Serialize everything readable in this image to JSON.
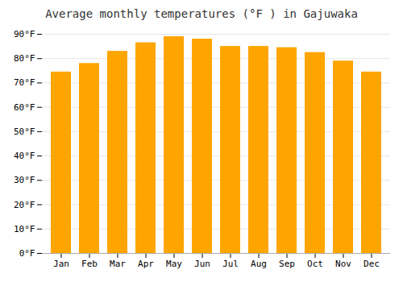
{
  "chart_data": {
    "type": "bar",
    "title": "Average monthly temperatures (°F ) in Gajuwaka",
    "categories": [
      "Jan",
      "Feb",
      "Mar",
      "Apr",
      "May",
      "Jun",
      "Jul",
      "Aug",
      "Sep",
      "Oct",
      "Nov",
      "Dec"
    ],
    "values": [
      74.5,
      78,
      83,
      86.5,
      89,
      88,
      85,
      85,
      84.5,
      82.5,
      79,
      74.5
    ],
    "color": "#FFA500",
    "ylim": [
      0,
      90
    ],
    "yticks": [
      {
        "value": 0,
        "label": "0°F"
      },
      {
        "value": 10,
        "label": "10°F"
      },
      {
        "value": 20,
        "label": "20°F"
      },
      {
        "value": 30,
        "label": "30°F"
      },
      {
        "value": 40,
        "label": "40°F"
      },
      {
        "value": 50,
        "label": "50°F"
      },
      {
        "value": 60,
        "label": "60°F"
      },
      {
        "value": 70,
        "label": "70°F"
      },
      {
        "value": 80,
        "label": "80°F"
      },
      {
        "value": 90,
        "label": "90°F"
      }
    ],
    "grid": true
  }
}
